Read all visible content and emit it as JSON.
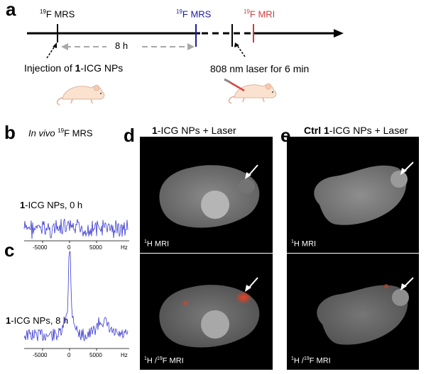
{
  "panel_a": {
    "letter": "a",
    "label_first": {
      "sup": "19",
      "text": "F MRS",
      "color": "#000000"
    },
    "label_second": {
      "sup": "19",
      "text": "F MRS",
      "color": "#1a1aa6"
    },
    "label_third": {
      "sup": "19",
      "text": "F MRI",
      "color": "#d23a3a"
    },
    "interval": "8 h",
    "injection_prefix": "Injection of ",
    "injection_bold": "1",
    "injection_suffix": "-ICG NPs",
    "laser_text": "808 nm laser for 6 min"
  },
  "panel_b": {
    "letter": "b",
    "title_italic": "In vivo",
    "title_sup": "19",
    "title_rest": "F MRS",
    "spectrum_label_bold": "1",
    "spectrum_label_rest": "-ICG NPs, 0 h",
    "x_ticks": [
      "-5000",
      "0",
      "5000",
      "Hz"
    ]
  },
  "panel_c": {
    "letter": "c",
    "spectrum_label_bold": "1",
    "spectrum_label_rest": "-ICG NPs, 8 h",
    "x_ticks": [
      "-5000",
      "0",
      "5000",
      "Hz"
    ]
  },
  "panel_d": {
    "letter": "d",
    "title_bold": "1",
    "title_rest": "-ICG NPs + Laser",
    "top_caption_sup": "1",
    "top_caption_rest": "H MRI",
    "bottom_caption_sup1": "1",
    "bottom_caption_mid": "H /",
    "bottom_caption_sup2": "19",
    "bottom_caption_rest": "F MRI"
  },
  "panel_e": {
    "letter": "e",
    "title_bold": "Ctrl 1",
    "title_rest": "-ICG NPs + Laser",
    "top_caption_sup": "1",
    "top_caption_rest": "H MRI",
    "bottom_caption_sup1": "1",
    "bottom_caption_mid": "H /",
    "bottom_caption_sup2": "19",
    "bottom_caption_rest": "F MRI"
  },
  "colors": {
    "spectrum": "#3a3ad0",
    "arrow_grey": "#a8a8a8",
    "timeline": "#000000",
    "hotspot": "#ff3a1a"
  }
}
